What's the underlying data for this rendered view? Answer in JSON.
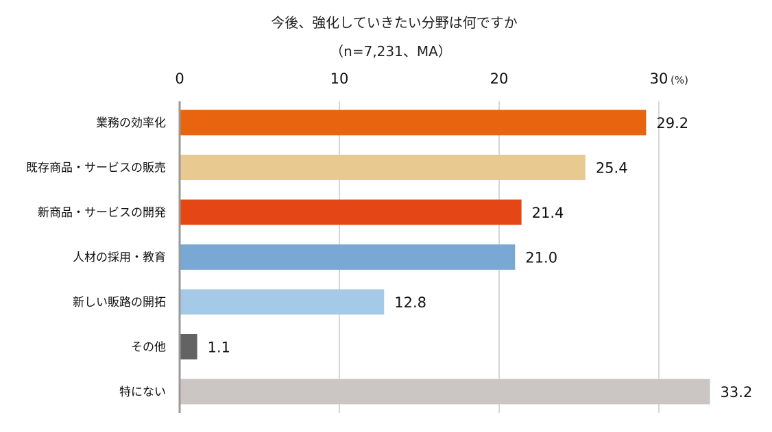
{
  "chart_data": {
    "type": "bar",
    "orientation": "horizontal",
    "title": "今後、強化していきたい分野は何ですか",
    "subtitle": "（n=7,231、MA）",
    "unit": "(%)",
    "xlim": [
      0,
      33.2
    ],
    "ticks": [
      0,
      10,
      20,
      30
    ],
    "tick_labels": [
      "0",
      "10",
      "20",
      "30"
    ],
    "grid": true,
    "categories": [
      "業務の効率化",
      "既存商品・サービスの販売",
      "新商品・サービスの開発",
      "人材の採用・教育",
      "新しい販路の開拓",
      "その他",
      "特にない"
    ],
    "values": [
      29.2,
      25.4,
      21.4,
      21.0,
      12.8,
      1.1,
      33.2
    ],
    "value_labels": [
      "29.2",
      "25.4",
      "21.4",
      "21.0",
      "12.8",
      "1.1",
      "33.2"
    ],
    "colors": [
      "#E8640F",
      "#E8C990",
      "#E44715",
      "#79A8D4",
      "#A5CAE8",
      "#636363",
      "#CBC6C4"
    ]
  }
}
